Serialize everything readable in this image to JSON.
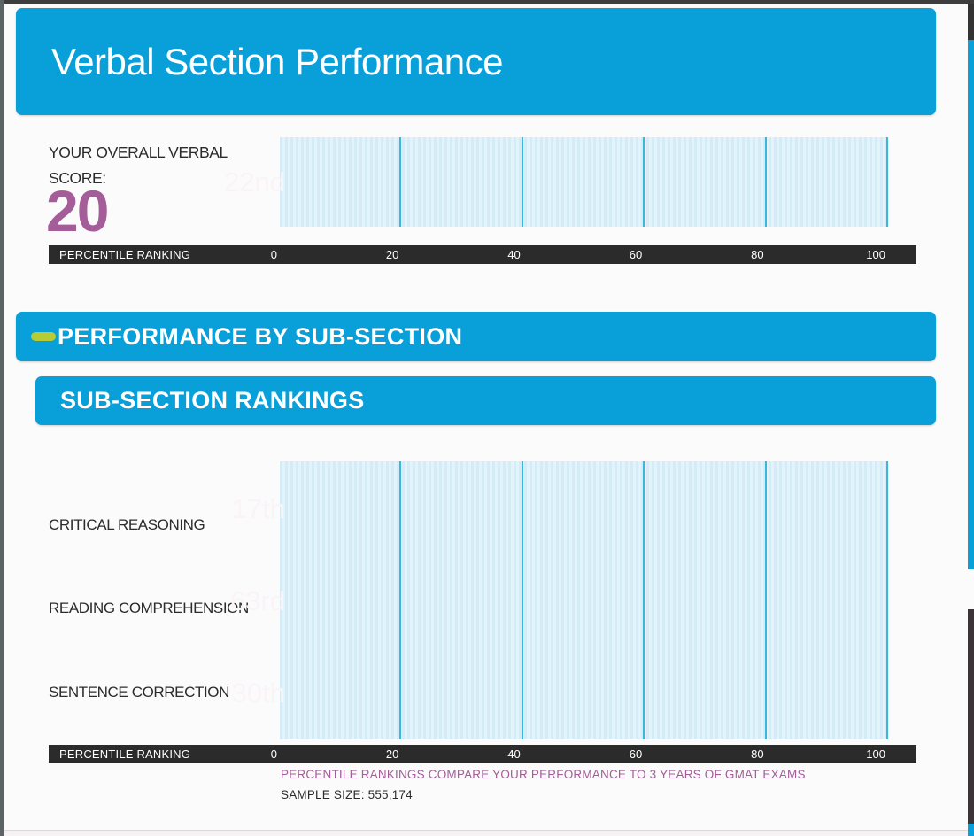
{
  "header": {
    "title": "Verbal Section Performance"
  },
  "overall_score": {
    "label_line1": "YOUR OVERALL VERBAL",
    "label_line2": "SCORE:",
    "value": "20"
  },
  "banners": {
    "performance": "PERFORMANCE BY SUB-SECTION",
    "subsection": "SUB-SECTION RANKINGS"
  },
  "axis": {
    "label": "PERCENTILE RANKING",
    "ticks": [
      "0",
      "20",
      "40",
      "60",
      "80",
      "100"
    ]
  },
  "footnote": {
    "line1": "PERCENTILE RANKINGS COMPARE YOUR PERFORMANCE TO 3 YEARS OF GMAT EXAMS",
    "line2": "SAMPLE SIZE: 555,174"
  },
  "colors": {
    "banner_blue": "#09a0da",
    "bar_purple": "#a45d99",
    "axis_strip_dark": "#2b2b2b",
    "gridline_blue": "#3ab7dd",
    "plot_background": "#d9edf6",
    "accent_green": "#b5cc35"
  },
  "chart_data": [
    {
      "type": "bar",
      "orientation": "horizontal",
      "title": "YOUR OVERALL VERBAL SCORE: 20",
      "categories": [
        "OVERALL VERBAL SCORE"
      ],
      "values": [
        22
      ],
      "value_labels": [
        "22nd"
      ],
      "xlabel": "PERCENTILE RANKING",
      "xlim": [
        0,
        100
      ],
      "xticks": [
        0,
        20,
        40,
        60,
        80,
        100
      ],
      "grid": true,
      "legend": false
    },
    {
      "type": "bar",
      "orientation": "horizontal",
      "title": "SUB-SECTION RANKINGS",
      "categories": [
        "CRITICAL REASONING",
        "READING COMPREHENSION",
        "SENTENCE CORRECTION"
      ],
      "values": [
        17,
        63,
        30
      ],
      "value_labels": [
        "17th",
        "63rd",
        "30th"
      ],
      "xlabel": "PERCENTILE RANKING",
      "xlim": [
        0,
        100
      ],
      "xticks": [
        0,
        20,
        40,
        60,
        80,
        100
      ],
      "grid": true,
      "legend": false
    }
  ]
}
